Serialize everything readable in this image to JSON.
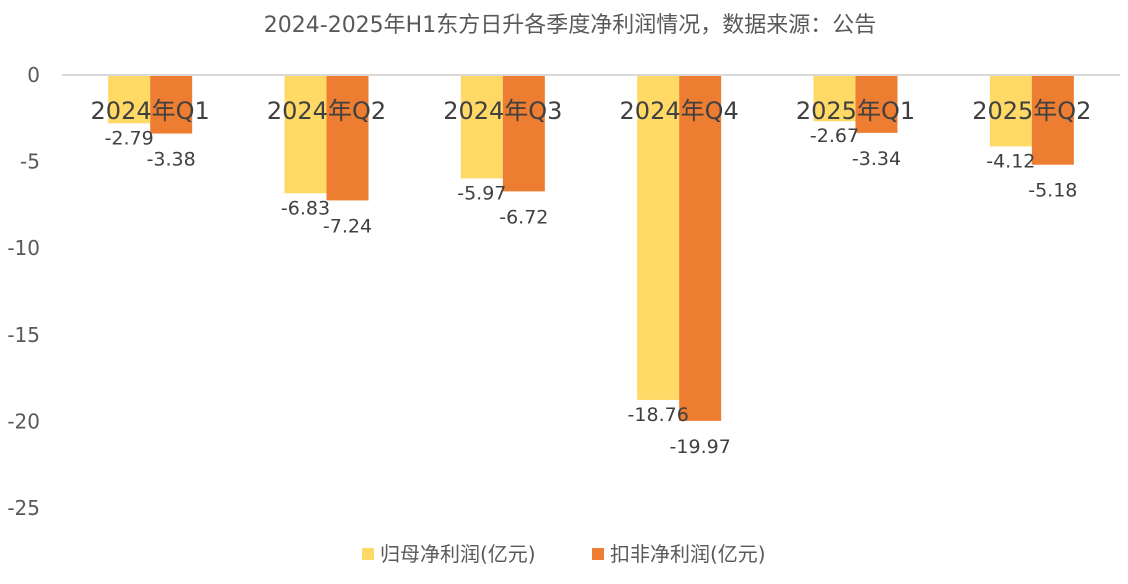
{
  "chart_data": {
    "type": "bar",
    "title": "2024-2025年H1东方日升各季度净利润情况，数据来源：公告",
    "categories": [
      "2024年Q1",
      "2024年Q2",
      "2024年Q3",
      "2024年Q4",
      "2025年Q1",
      "2025年Q2"
    ],
    "series": [
      {
        "name": "归母净利润(亿元)",
        "values": [
          -2.79,
          -6.83,
          -5.97,
          -18.76,
          -2.67,
          -4.12
        ],
        "color": "#FFD966"
      },
      {
        "name": "扣非净利润(亿元)",
        "values": [
          -3.38,
          -7.24,
          -6.72,
          -19.97,
          -3.34,
          -5.18
        ],
        "color": "#ED7D31"
      }
    ],
    "y_ticks": [
      "0",
      "-5",
      "-10",
      "-15",
      "-20",
      "-25"
    ],
    "ylim": [
      -25,
      0
    ],
    "xlabel": "",
    "ylabel": "",
    "grid": false,
    "legend_position": "bottom",
    "data_labels": [
      [
        "-2.79",
        "-6.83",
        "-5.97",
        "-18.76",
        "-2.67",
        "-4.12"
      ],
      [
        "-3.38",
        "-7.24",
        "-6.72",
        "-19.97",
        "-3.34",
        "-5.18"
      ]
    ]
  }
}
